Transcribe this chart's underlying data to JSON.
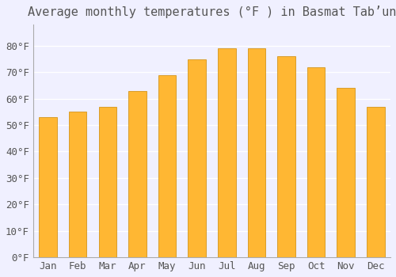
{
  "months": [
    "Jan",
    "Feb",
    "Mar",
    "Apr",
    "May",
    "Jun",
    "Jul",
    "Aug",
    "Sep",
    "Oct",
    "Nov",
    "Dec"
  ],
  "values": [
    53,
    55,
    57,
    63,
    69,
    75,
    79,
    79,
    76,
    72,
    64,
    57
  ],
  "bar_color_top": "#FFA500",
  "bar_color_bottom": "#FFB733",
  "title": "Average monthly temperatures (°F ) in Basmat Tabʼun",
  "yticks": [
    0,
    10,
    20,
    30,
    40,
    50,
    60,
    70,
    80
  ],
  "ytick_labels": [
    "0°F",
    "10°F",
    "20°F",
    "30°F",
    "40°F",
    "50°F",
    "60°F",
    "70°F",
    "80°F"
  ],
  "ylim": [
    0,
    88
  ],
  "bg_color": "#f0f0ff",
  "bar_edge_color": "#cc8800",
  "title_fontsize": 11,
  "tick_fontsize": 9,
  "grid_color": "#ffffff"
}
